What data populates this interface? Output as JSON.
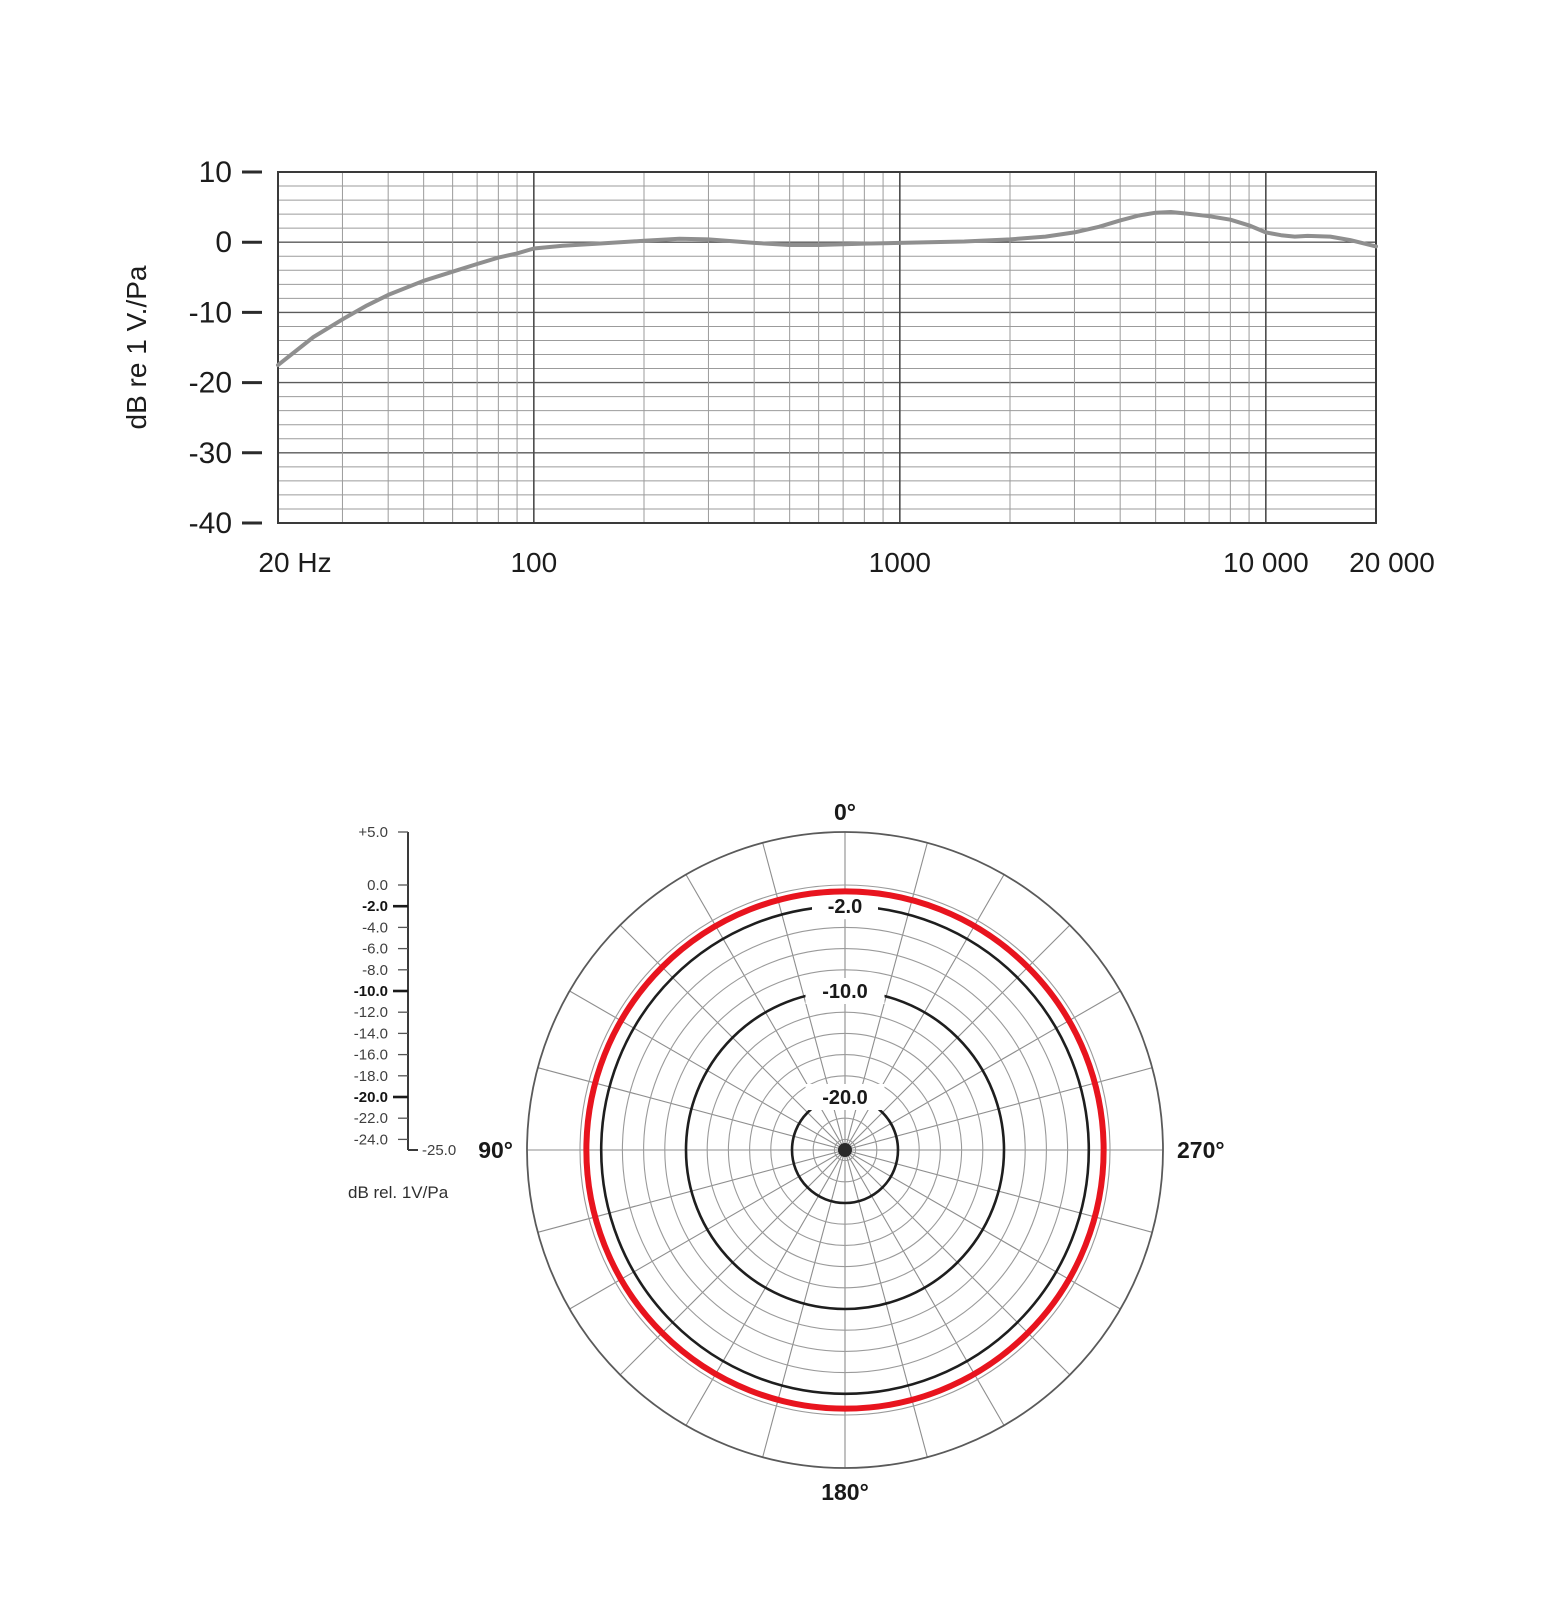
{
  "page": {
    "background": "#ffffff"
  },
  "chart_data": [
    {
      "type": "line",
      "name": "frequency-response",
      "title": "",
      "xlabel": "",
      "ylabel": "dB re 1 V./Pa",
      "x_scale": "log",
      "xlim": [
        20,
        20000
      ],
      "ylim": [
        -40,
        10
      ],
      "grid": "on",
      "grid_db_step": 2,
      "x_ticks": [
        {
          "value": 20,
          "label": "20 Hz"
        },
        {
          "value": 100,
          "label": "100"
        },
        {
          "value": 1000,
          "label": "1000"
        },
        {
          "value": 10000,
          "label": "10 000"
        },
        {
          "value": 20000,
          "label": "20 000"
        }
      ],
      "y_ticks": [
        10,
        0,
        -10,
        -20,
        -30,
        -40
      ],
      "series": [
        {
          "name": "response",
          "color": "#8f8f8f",
          "points": [
            [
              20,
              -17.5
            ],
            [
              25,
              -13.5
            ],
            [
              30,
              -11.0
            ],
            [
              35,
              -9.0
            ],
            [
              40,
              -7.5
            ],
            [
              50,
              -5.5
            ],
            [
              60,
              -4.2
            ],
            [
              70,
              -3.1
            ],
            [
              80,
              -2.2
            ],
            [
              90,
              -1.6
            ],
            [
              100,
              -0.9
            ],
            [
              120,
              -0.5
            ],
            [
              150,
              -0.2
            ],
            [
              200,
              0.2
            ],
            [
              250,
              0.5
            ],
            [
              300,
              0.4
            ],
            [
              400,
              -0.1
            ],
            [
              500,
              -0.4
            ],
            [
              600,
              -0.4
            ],
            [
              700,
              -0.3
            ],
            [
              800,
              -0.2
            ],
            [
              1000,
              -0.1
            ],
            [
              1200,
              0.0
            ],
            [
              1500,
              0.1
            ],
            [
              2000,
              0.4
            ],
            [
              2500,
              0.8
            ],
            [
              3000,
              1.4
            ],
            [
              3500,
              2.2
            ],
            [
              4000,
              3.1
            ],
            [
              4500,
              3.8
            ],
            [
              5000,
              4.2
            ],
            [
              5500,
              4.3
            ],
            [
              6000,
              4.1
            ],
            [
              7000,
              3.7
            ],
            [
              8000,
              3.2
            ],
            [
              9000,
              2.4
            ],
            [
              10000,
              1.4
            ],
            [
              11000,
              1.0
            ],
            [
              12000,
              0.8
            ],
            [
              13000,
              0.9
            ],
            [
              15000,
              0.8
            ],
            [
              17000,
              0.3
            ],
            [
              20000,
              -0.6
            ]
          ]
        }
      ]
    },
    {
      "type": "line",
      "projection": "polar",
      "name": "polar-pattern",
      "title": "",
      "unit_label": "dB rel. 1V/Pa",
      "r_range_db": [
        -25,
        5
      ],
      "spoke_step_deg": 15,
      "rings_db": [
        0,
        -2,
        -4,
        -6,
        -8,
        -10,
        -12,
        -14,
        -16,
        -18,
        -20,
        -22,
        -24
      ],
      "bold_rings_db": [
        -2,
        -10,
        -20
      ],
      "ring_labels": [
        {
          "db": -2,
          "label": "-2.0"
        },
        {
          "db": -10,
          "label": "-10.0"
        },
        {
          "db": -20,
          "label": "-20.0"
        }
      ],
      "angle_labels": [
        {
          "deg": 0,
          "label": "0°"
        },
        {
          "deg": 90,
          "label": "90°"
        },
        {
          "deg": 270,
          "label": "270°"
        },
        {
          "deg": 180,
          "label": "180°"
        }
      ],
      "scale_ticks": [
        {
          "db": 5,
          "label": "+5.0",
          "bold": false
        },
        {
          "db": 0,
          "label": "0.0",
          "bold": false
        },
        {
          "db": -2,
          "label": "-2.0",
          "bold": true
        },
        {
          "db": -4,
          "label": "-4.0",
          "bold": false
        },
        {
          "db": -6,
          "label": "-6.0",
          "bold": false
        },
        {
          "db": -8,
          "label": "-8.0",
          "bold": false
        },
        {
          "db": -10,
          "label": "-10.0",
          "bold": true
        },
        {
          "db": -12,
          "label": "-12.0",
          "bold": false
        },
        {
          "db": -14,
          "label": "-14.0",
          "bold": false
        },
        {
          "db": -16,
          "label": "-16.0",
          "bold": false
        },
        {
          "db": -18,
          "label": "-18.0",
          "bold": false
        },
        {
          "db": -20,
          "label": "-20.0",
          "bold": true
        },
        {
          "db": -22,
          "label": "-22.0",
          "bold": false
        },
        {
          "db": -24,
          "label": "-24.0",
          "bold": false
        }
      ],
      "scale_min_label": "-25.0",
      "pattern": {
        "shape": "omnidirectional-circle",
        "db": -0.6,
        "color": "#e8141e"
      }
    }
  ]
}
